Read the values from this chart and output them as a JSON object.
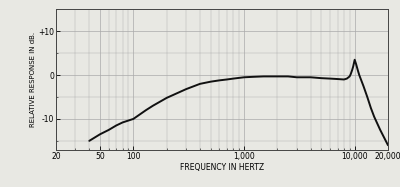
{
  "xlabel": "FREQUENCY IN HERTZ",
  "ylabel": "RELATIVE RESPONSE IN dB.",
  "xlim": [
    20,
    20000
  ],
  "ylim": [
    -17,
    15
  ],
  "yticks": [
    -10,
    0,
    10
  ],
  "ytick_labels": [
    "-10",
    "0",
    "+10"
  ],
  "xtick_labels": [
    "20",
    "50",
    "100",
    "1,000",
    "10,000",
    "20,000"
  ],
  "xtick_values": [
    20,
    50,
    100,
    1000,
    10000,
    20000
  ],
  "background_color": "#e8e8e3",
  "line_color": "#111111",
  "grid_color": "#aaaaaa",
  "curve_freq": [
    40,
    50,
    60,
    70,
    80,
    100,
    130,
    150,
    200,
    300,
    400,
    500,
    600,
    700,
    800,
    1000,
    1200,
    1500,
    2000,
    2500,
    3000,
    4000,
    5000,
    6000,
    7000,
    8000,
    8500,
    9000,
    9200,
    9500,
    9700,
    10000,
    10300,
    10700,
    11000,
    12000,
    13000,
    14000,
    15000,
    17000,
    20000
  ],
  "curve_db": [
    -15,
    -13.5,
    -12.5,
    -11.5,
    -10.8,
    -10,
    -8.0,
    -7.0,
    -5.2,
    -3.2,
    -2.0,
    -1.5,
    -1.2,
    -1.0,
    -0.8,
    -0.5,
    -0.4,
    -0.3,
    -0.3,
    -0.3,
    -0.5,
    -0.5,
    -0.7,
    -0.8,
    -0.9,
    -1.0,
    -0.8,
    -0.3,
    0.2,
    1.2,
    2.0,
    3.5,
    2.5,
    1.0,
    0.0,
    -2.5,
    -5.0,
    -7.5,
    -9.5,
    -12.5,
    -16.0
  ]
}
